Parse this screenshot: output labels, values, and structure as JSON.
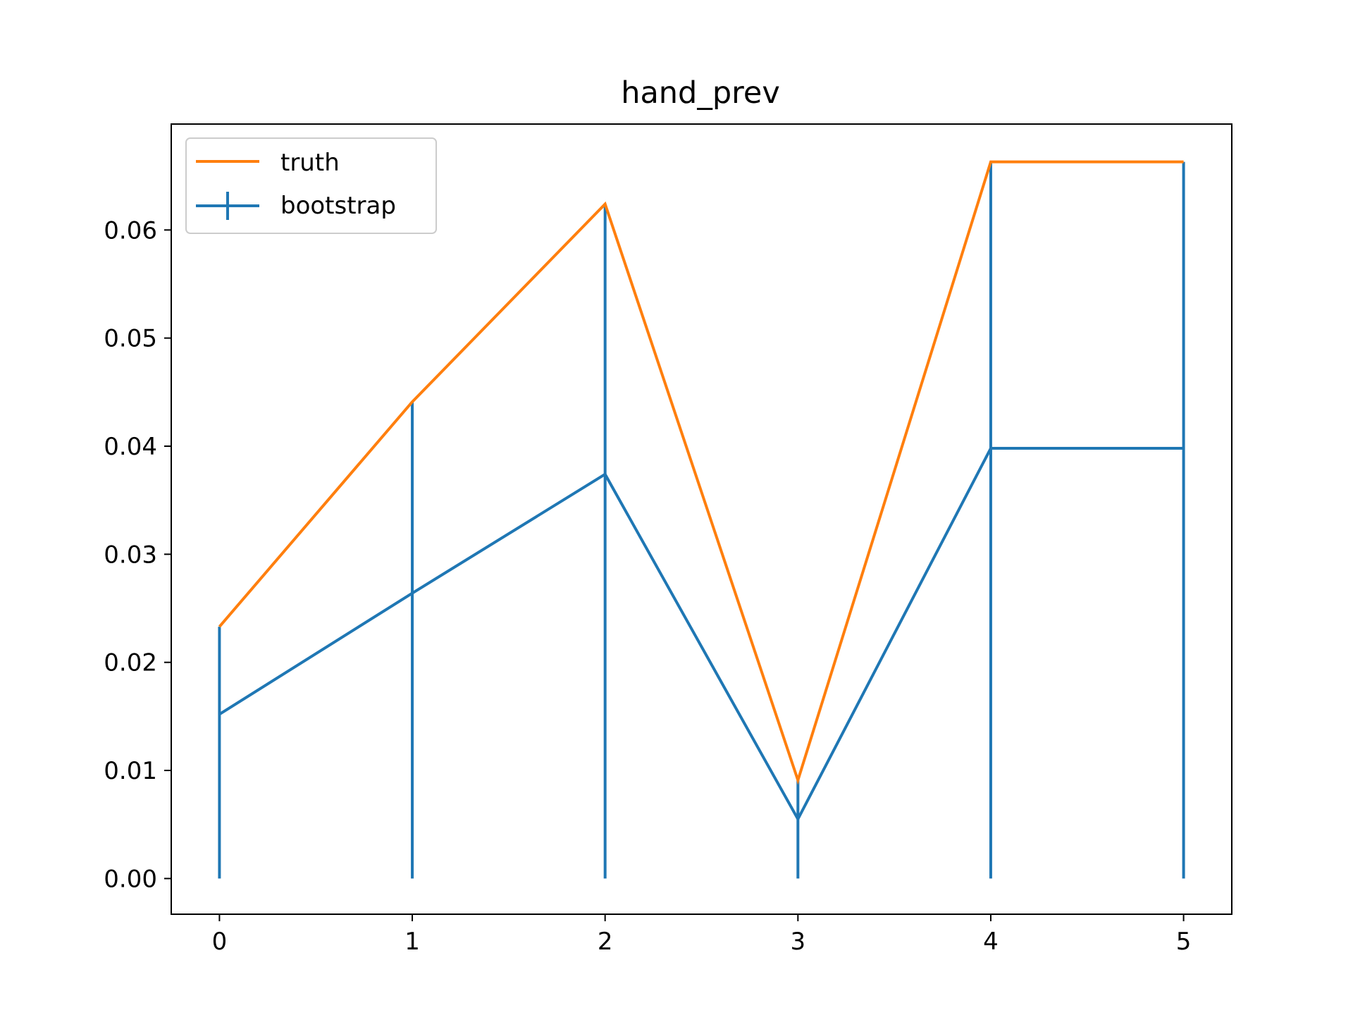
{
  "chart_data": {
    "type": "line",
    "title": "hand_prev",
    "xlabel": "",
    "ylabel": "",
    "x": [
      0,
      1,
      2,
      3,
      4,
      5
    ],
    "xlim": [
      -0.25,
      5.25
    ],
    "ylim": [
      -0.0033,
      0.0698
    ],
    "x_ticks": [
      0,
      1,
      2,
      3,
      4,
      5
    ],
    "x_tick_labels": [
      "0",
      "1",
      "2",
      "3",
      "4",
      "5"
    ],
    "y_ticks": [
      0.0,
      0.01,
      0.02,
      0.03,
      0.04,
      0.05,
      0.06
    ],
    "y_tick_labels": [
      "0.00",
      "0.01",
      "0.02",
      "0.03",
      "0.04",
      "0.05",
      "0.06"
    ],
    "grid": false,
    "legend_position": "top-left",
    "series": [
      {
        "name": "truth",
        "color": "#ff7f0e",
        "values": [
          0.0233,
          0.0441,
          0.0624,
          0.0091,
          0.0663,
          0.0663
        ]
      },
      {
        "name": "bootstrap",
        "color": "#1f77b4",
        "values": [
          0.0152,
          0.0264,
          0.0374,
          0.0055,
          0.0398,
          0.0398
        ],
        "error_lower": [
          0.0,
          0.0,
          0.0,
          0.0,
          0.0,
          0.0
        ],
        "error_upper": [
          0.0233,
          0.0441,
          0.0624,
          0.0091,
          0.0663,
          0.0663
        ]
      }
    ]
  }
}
